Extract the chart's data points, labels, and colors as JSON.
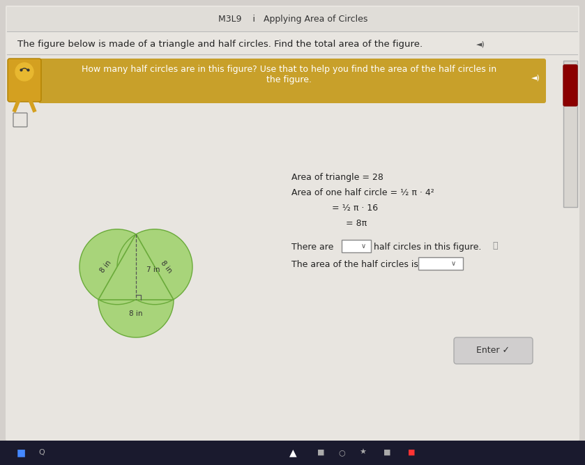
{
  "bg_color": "#d4d0cc",
  "page_color": "#e8e5e0",
  "header_text": "M3L9    i   Applying Area of Circles",
  "question_text": "The figure below is made of a triangle and half circles. Find the total area of the figure.",
  "hint_bg": "#c8a02a",
  "hint_text": "How many half circles are in this figure? Use that to help you find the area of the half circles in\nthe figure.",
  "triangle_fill": "#a8d47a",
  "circle_fill": "#a8d47a",
  "circle_edge": "#6aaa3a",
  "triangle_edge": "#6aaa3a",
  "label_8in_left": "8 in",
  "label_8in_right": "8 in",
  "label_7in": "7 in",
  "label_8in_bottom": "8 in",
  "math_lines": [
    "Area of triangle = 28",
    "Area of one half circle = ½ π · 4²",
    "= ½ π · 16",
    "= 8π"
  ],
  "there_are_text": "There are",
  "half_circles_text": "half circles in this figure.",
  "area_text": "The area of the half circles is",
  "enter_button": "Enter ✓",
  "scrollbar_color": "#8B0000",
  "mascot_color": "#c8a020",
  "taskbar_color": "#1a1a2e"
}
